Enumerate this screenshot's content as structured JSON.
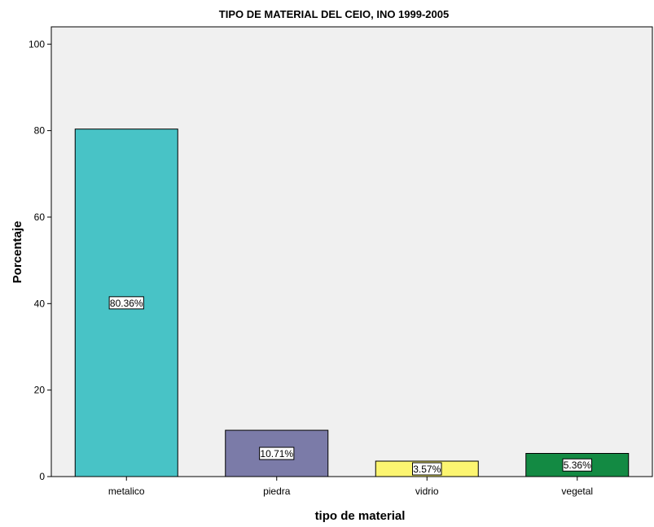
{
  "chart_data": {
    "type": "bar",
    "title": "TIPO DE MATERIAL DEL CEIO, INO 1999-2005",
    "xlabel": "tipo de material",
    "ylabel": "Porcentaje",
    "categories": [
      "metalico",
      "piedra",
      "vidrio",
      "vegetal"
    ],
    "values": [
      80.36,
      10.71,
      3.57,
      5.36
    ],
    "data_labels": [
      "80.36%",
      "10.71%",
      "3.57%",
      "5.36%"
    ],
    "colors": [
      "#48C3C6",
      "#7B7BA8",
      "#FCF571",
      "#138A43"
    ],
    "ylim": [
      0,
      104
    ],
    "yticks": [
      0,
      20,
      40,
      60,
      80,
      100
    ],
    "plot_background": "#F0F0F0",
    "grid": false,
    "legend": "none"
  }
}
